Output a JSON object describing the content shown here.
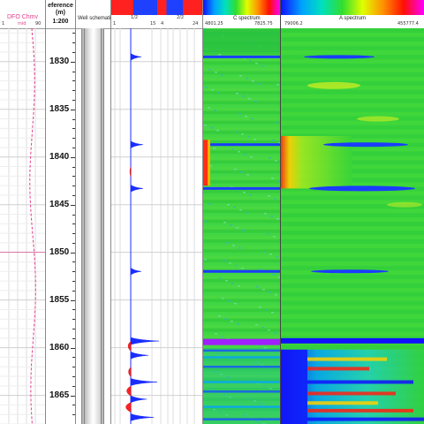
{
  "tracks": {
    "temperature": {
      "title": "DFO Chmv",
      "scale_min": "1",
      "scale_mid": "mid",
      "scale_max": "90"
    },
    "depth": {
      "title": "eference (m)",
      "scale": "1:200"
    },
    "well": {
      "title": "Well schematic"
    },
    "noise": {
      "scale_labels": [
        "1",
        "15",
        "4",
        "24"
      ],
      "header_values": [
        "1/2",
        "2/2"
      ]
    },
    "c_spectrum": {
      "title": "C spectrum",
      "scale_min": "4801.25",
      "scale_max": "7825.75"
    },
    "a_spectrum": {
      "title": "A spectrum",
      "scale_min": "79006.2",
      "scale_max": "455777.4"
    }
  },
  "chart_data": {
    "type": "heatmap",
    "title": "",
    "ylabel": "eference (m)",
    "ylim": [
      1826.5,
      1868.0
    ],
    "y_ticks": [
      1830,
      1835,
      1840,
      1845,
      1850,
      1855,
      1860,
      1865
    ],
    "noise_peaks_depth_m": [
      1829.5,
      1838.7,
      1843.3,
      1852.0,
      1859.3,
      1860.8,
      1863.6,
      1865.4,
      1867.3
    ],
    "colormap": [
      "#0000ff",
      "#00a0ff",
      "#00e0a0",
      "#22dd22",
      "#ffff00",
      "#ff8000",
      "#ff0000",
      "#ff00ff"
    ],
    "series": [
      {
        "name": "C spectrum",
        "colormap_range": [
          4801.25,
          7825.75
        ]
      },
      {
        "name": "A spectrum",
        "colormap_range": [
          79006.2,
          455777.4
        ]
      }
    ]
  }
}
